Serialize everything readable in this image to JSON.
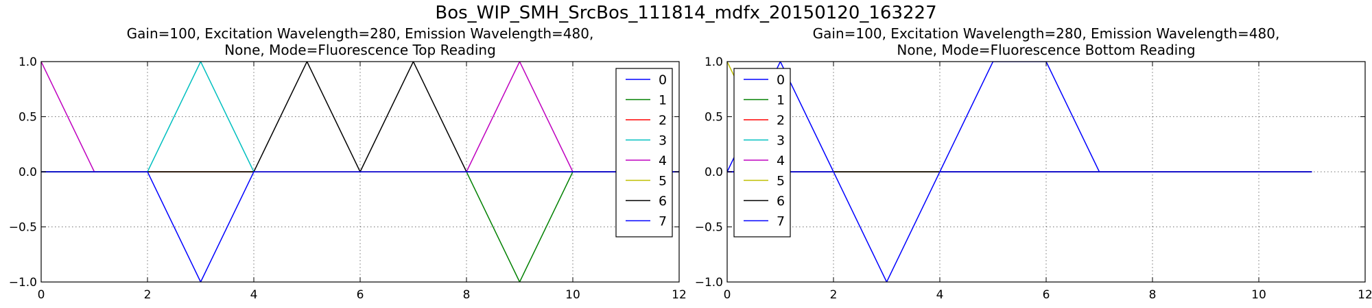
{
  "suptitle": "Bos_WIP_SMH_SrcBos_111814_mdfx_20150120_163227",
  "palette": [
    "#0000ff",
    "#008000",
    "#ff0000",
    "#00bfbf",
    "#bf00bf",
    "#bfbf00",
    "#000000",
    "#0000ff"
  ],
  "chart_data": [
    {
      "type": "line",
      "title": "Gain=100, Excitation Wavelength=280, Emission Wavelength=480,\nNone, Mode=Fluorescence Top Reading",
      "xlabel": "",
      "ylabel": "",
      "xlim": [
        0,
        12
      ],
      "ylim": [
        -1.0,
        1.0
      ],
      "xticks": [
        "0",
        "2",
        "4",
        "6",
        "8",
        "10",
        "12"
      ],
      "yticks": [
        "−1.0",
        "−0.5",
        "0.0",
        "0.5",
        "1.0"
      ],
      "grid": true,
      "legend_position": "upper-right",
      "series": [
        {
          "name": "0",
          "x": [
            0,
            1,
            2,
            3,
            4,
            5,
            6,
            7,
            8,
            9,
            10,
            11,
            12
          ],
          "y": [
            0,
            0,
            0,
            0,
            0,
            0,
            0,
            0,
            0,
            0,
            0,
            0,
            0
          ]
        },
        {
          "name": "1",
          "x": [
            0,
            1,
            2,
            3,
            4,
            5,
            6,
            7,
            8,
            9,
            10,
            11,
            12
          ],
          "y": [
            0,
            0,
            0,
            0,
            0,
            0,
            0,
            0,
            0,
            -1,
            0,
            0,
            0
          ]
        },
        {
          "name": "2",
          "x": [
            0,
            1,
            2,
            3,
            4,
            5,
            6,
            7,
            8,
            9,
            10,
            11,
            12
          ],
          "y": [
            0,
            0,
            0,
            0,
            0,
            0,
            0,
            0,
            0,
            0,
            0,
            0,
            0
          ]
        },
        {
          "name": "3",
          "x": [
            0,
            1,
            2,
            3,
            4,
            5,
            6,
            7,
            8,
            9,
            10,
            11,
            12
          ],
          "y": [
            0,
            0,
            0,
            1,
            0,
            0,
            0,
            0,
            0,
            0,
            0,
            0,
            0
          ]
        },
        {
          "name": "4",
          "x": [
            0,
            1,
            2,
            3,
            4,
            5,
            6,
            7,
            8,
            9,
            10,
            11,
            12
          ],
          "y": [
            1,
            0,
            0,
            0,
            0,
            0,
            0,
            0,
            0,
            1,
            0,
            0,
            0
          ]
        },
        {
          "name": "5",
          "x": [
            0,
            1,
            2,
            3,
            4,
            5,
            6,
            7,
            8,
            9,
            10,
            11,
            12
          ],
          "y": [
            0,
            0,
            0,
            0,
            0,
            0,
            0,
            0,
            0,
            0,
            0,
            0,
            0
          ]
        },
        {
          "name": "6",
          "x": [
            0,
            1,
            2,
            3,
            4,
            5,
            6,
            7,
            8,
            9,
            10,
            11,
            12
          ],
          "y": [
            0,
            0,
            0,
            0,
            0,
            1,
            0,
            1,
            0,
            0,
            0,
            0,
            0
          ]
        },
        {
          "name": "7",
          "x": [
            0,
            1,
            2,
            3,
            4,
            5,
            6,
            7,
            8,
            9,
            10,
            11,
            12
          ],
          "y": [
            0,
            0,
            0,
            -1,
            0,
            0,
            0,
            0,
            0,
            0,
            0,
            0,
            0
          ]
        }
      ]
    },
    {
      "type": "line",
      "title": "Gain=100, Excitation Wavelength=280, Emission Wavelength=480,\nNone, Mode=Fluorescence Bottom Reading",
      "xlabel": "",
      "ylabel": "",
      "xlim": [
        0,
        12
      ],
      "ylim": [
        -1.0,
        1.0
      ],
      "xticks": [
        "0",
        "2",
        "4",
        "6",
        "8",
        "10",
        "12"
      ],
      "yticks": [
        "−1.0",
        "−0.5",
        "0.0",
        "0.5",
        "1.0"
      ],
      "grid": true,
      "legend_position": "upper-left",
      "series": [
        {
          "name": "0",
          "x": [
            0,
            1,
            2,
            3,
            4,
            5,
            6,
            7,
            8,
            9,
            10,
            11
          ],
          "y": [
            0,
            1,
            0,
            0,
            0,
            1,
            1,
            0,
            0,
            0,
            0,
            0
          ]
        },
        {
          "name": "1",
          "x": [
            0,
            1,
            2,
            3,
            4,
            5,
            6,
            7,
            8,
            9,
            10,
            11
          ],
          "y": [
            0,
            0,
            0,
            0,
            0,
            0,
            0,
            0,
            0,
            0,
            0,
            0
          ]
        },
        {
          "name": "2",
          "x": [
            0,
            1,
            2,
            3,
            4,
            5,
            6,
            7,
            8,
            9,
            10,
            11
          ],
          "y": [
            0,
            0,
            0,
            0,
            0,
            0,
            0,
            0,
            0,
            0,
            0,
            0
          ]
        },
        {
          "name": "3",
          "x": [
            0,
            1,
            2,
            3,
            4,
            5,
            6,
            7,
            8,
            9,
            10,
            11
          ],
          "y": [
            0,
            0,
            0,
            0,
            0,
            0,
            0,
            0,
            0,
            0,
            0,
            0
          ]
        },
        {
          "name": "4",
          "x": [
            0,
            1,
            2,
            3,
            4,
            5,
            6,
            7,
            8,
            9,
            10,
            11
          ],
          "y": [
            0,
            0,
            0,
            0,
            0,
            0,
            0,
            0,
            0,
            0,
            0,
            0
          ]
        },
        {
          "name": "5",
          "x": [
            0,
            1,
            2,
            3,
            4,
            5,
            6,
            7,
            8,
            9,
            10,
            11
          ],
          "y": [
            1,
            0,
            0,
            0,
            0,
            0,
            0,
            0,
            0,
            0,
            0,
            0
          ]
        },
        {
          "name": "6",
          "x": [
            0,
            1,
            2,
            3,
            4,
            5,
            6,
            7,
            8,
            9,
            10,
            11
          ],
          "y": [
            0,
            0,
            0,
            0,
            0,
            0,
            0,
            0,
            0,
            0,
            0,
            0
          ]
        },
        {
          "name": "7",
          "x": [
            0,
            1,
            2,
            3,
            4,
            5,
            6,
            7,
            8,
            9,
            10,
            11
          ],
          "y": [
            0,
            0,
            0,
            -1,
            0,
            0,
            0,
            0,
            0,
            0,
            0,
            0
          ]
        }
      ]
    }
  ]
}
